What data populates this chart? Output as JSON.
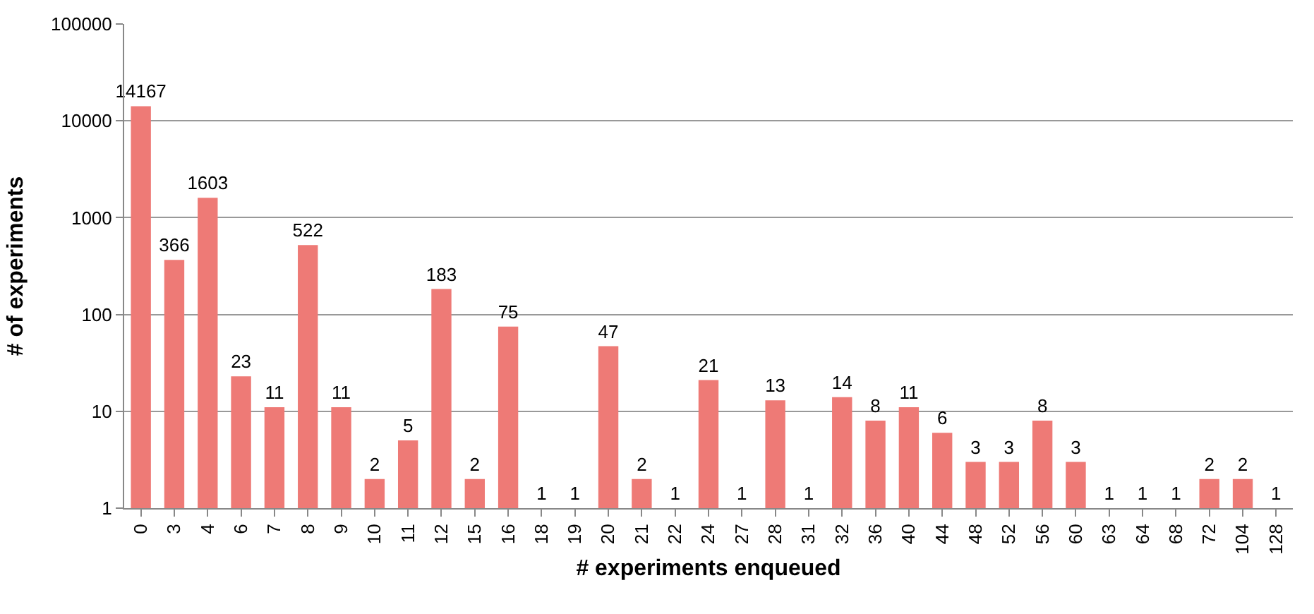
{
  "chart_data": {
    "type": "bar",
    "xlabel": "# experiments enqueued",
    "ylabel": "# of experiments",
    "categories": [
      "0",
      "3",
      "4",
      "6",
      "7",
      "8",
      "9",
      "10",
      "11",
      "12",
      "15",
      "16",
      "18",
      "19",
      "20",
      "21",
      "22",
      "24",
      "27",
      "28",
      "31",
      "32",
      "36",
      "40",
      "44",
      "48",
      "52",
      "56",
      "60",
      "63",
      "64",
      "68",
      "72",
      "104",
      "128"
    ],
    "values": [
      14167,
      366,
      1603,
      23,
      11,
      522,
      11,
      2,
      5,
      183,
      2,
      75,
      1,
      1,
      47,
      2,
      1,
      21,
      1,
      13,
      1,
      14,
      8,
      11,
      6,
      3,
      3,
      8,
      3,
      1,
      1,
      1,
      2,
      2,
      1
    ],
    "color": "#ee7a76",
    "log": true,
    "ylim": [
      1,
      100000
    ],
    "yticks": [
      1,
      10,
      100,
      1000,
      10000,
      100000
    ],
    "grid": "y",
    "data_labels": true
  }
}
